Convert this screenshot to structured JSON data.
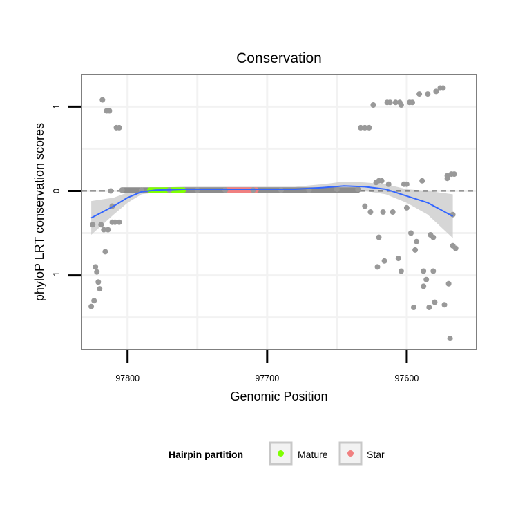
{
  "chart_data": {
    "type": "scatter",
    "title": "Conservation",
    "xlabel": "Genomic Position",
    "ylabel": "phyloP LRT conservation scores",
    "x_reversed": true,
    "xlim": [
      97833,
      97550
    ],
    "ylim": [
      -1.88,
      1.38
    ],
    "x_ticks": [
      97800,
      97700,
      97600
    ],
    "y_ticks": [
      -1,
      0,
      1
    ],
    "x_tick_labels": [
      "97800",
      "97700",
      "97600"
    ],
    "y_tick_labels": [
      "-1",
      "0",
      "1"
    ],
    "grid": true,
    "reference_line": {
      "y": 0,
      "style": "dashed"
    },
    "legend": {
      "title": "Hairpin partition",
      "position": "bottom",
      "entries": [
        {
          "label": "Mature",
          "color": "#7FFF00"
        },
        {
          "label": "Star",
          "color": "#F08080"
        }
      ]
    },
    "colors": {
      "points": "#999999",
      "smooth_line": "#3366FF",
      "confidence_band": "#C8C8C8",
      "mature": "#7FFF00",
      "star": "#F08080",
      "panel_border": "#7F7F7F",
      "grid": "#F2F2F2"
    },
    "series": [
      {
        "name": "conservation scores",
        "points": [
          [
            97826,
            -1.37
          ],
          [
            97824,
            -1.3
          ],
          [
            97823,
            -0.9
          ],
          [
            97822,
            -0.96
          ],
          [
            97821,
            -1.08
          ],
          [
            97820,
            -1.16
          ],
          [
            97825,
            -0.4
          ],
          [
            97819,
            -0.4
          ],
          [
            97818,
            1.08
          ],
          [
            97815,
            0.95
          ],
          [
            97813,
            0.95
          ],
          [
            97817,
            -0.46
          ],
          [
            97816,
            -0.72
          ],
          [
            97814,
            -0.46
          ],
          [
            97812,
            0.0
          ],
          [
            97811,
            -0.18
          ],
          [
            97811,
            -0.37
          ],
          [
            97809,
            -0.37
          ],
          [
            97808,
            0.75
          ],
          [
            97806,
            0.75
          ],
          [
            97806,
            -0.37
          ],
          [
            97804,
            0.01
          ],
          [
            97790,
            0.01
          ],
          [
            97770,
            0.01
          ],
          [
            97750,
            0.01
          ],
          [
            97730,
            0.01
          ],
          [
            97710,
            0.01
          ],
          [
            97690,
            0.01
          ],
          [
            97670,
            0.01
          ],
          [
            97650,
            0.02
          ],
          [
            97635,
            0.02
          ],
          [
            97633,
            0.75
          ],
          [
            97630,
            0.75
          ],
          [
            97627,
            0.75
          ],
          [
            97630,
            -0.18
          ],
          [
            97626,
            -0.25
          ],
          [
            97624,
            1.02
          ],
          [
            97622,
            0.1
          ],
          [
            97620,
            0.12
          ],
          [
            97618,
            0.12
          ],
          [
            97620,
            -0.55
          ],
          [
            97621,
            -0.9
          ],
          [
            97617,
            -0.25
          ],
          [
            97616,
            -0.83
          ],
          [
            97614,
            1.05
          ],
          [
            97612,
            1.05
          ],
          [
            97610,
            -0.25
          ],
          [
            97613,
            0.08
          ],
          [
            97608,
            1.05
          ],
          [
            97605,
            1.05
          ],
          [
            97604,
            1.02
          ],
          [
            97606,
            -0.8
          ],
          [
            97604,
            -0.95
          ],
          [
            97602,
            0.08
          ],
          [
            97600,
            0.08
          ],
          [
            97600,
            -0.2
          ],
          [
            97598,
            1.05
          ],
          [
            97596,
            1.05
          ],
          [
            97597,
            -0.5
          ],
          [
            97595,
            -1.38
          ],
          [
            97593,
            -0.6
          ],
          [
            97594,
            -0.7
          ],
          [
            97591,
            1.15
          ],
          [
            97589,
            0.12
          ],
          [
            97588,
            -0.95
          ],
          [
            97588,
            -1.13
          ],
          [
            97586,
            -1.05
          ],
          [
            97585,
            1.15
          ],
          [
            97583,
            -0.52
          ],
          [
            97584,
            -1.38
          ],
          [
            97581,
            -0.55
          ],
          [
            97581,
            -0.95
          ],
          [
            97580,
            -1.32
          ],
          [
            97579,
            1.18
          ],
          [
            97576,
            1.22
          ],
          [
            97574,
            1.22
          ],
          [
            97573,
            -1.35
          ],
          [
            97571,
            0.18
          ],
          [
            97571,
            0.15
          ],
          [
            97570,
            -1.1
          ],
          [
            97569,
            -1.75
          ],
          [
            97568,
            0.2
          ],
          [
            97566,
            0.2
          ],
          [
            97567,
            -0.65
          ],
          [
            97567,
            -0.28
          ],
          [
            97565,
            -0.68
          ]
        ]
      },
      {
        "name": "loess smooth",
        "x": [
          97826,
          97810,
          97800,
          97790,
          97780,
          97760,
          97740,
          97720,
          97700,
          97680,
          97660,
          97645,
          97630,
          97615,
          97600,
          97585,
          97567
        ],
        "y": [
          -0.32,
          -0.18,
          -0.08,
          -0.01,
          0.01,
          0.02,
          0.02,
          0.02,
          0.02,
          0.02,
          0.04,
          0.06,
          0.05,
          0.02,
          -0.06,
          -0.14,
          -0.3
        ],
        "lower": [
          -0.52,
          -0.28,
          -0.14,
          -0.04,
          -0.02,
          -0.01,
          -0.01,
          -0.01,
          -0.01,
          -0.01,
          0.0,
          0.01,
          0.0,
          -0.04,
          -0.14,
          -0.28,
          -0.56
        ],
        "upper": [
          -0.12,
          -0.08,
          -0.02,
          0.03,
          0.04,
          0.05,
          0.05,
          0.05,
          0.05,
          0.05,
          0.08,
          0.11,
          0.1,
          0.08,
          0.02,
          0.0,
          -0.04
        ]
      },
      {
        "name": "Mature",
        "x_range": [
          97784,
          97760
        ],
        "y": 0.01
      },
      {
        "name": "Star",
        "x_range": [
          97730,
          97708
        ],
        "y": 0.01
      }
    ]
  }
}
